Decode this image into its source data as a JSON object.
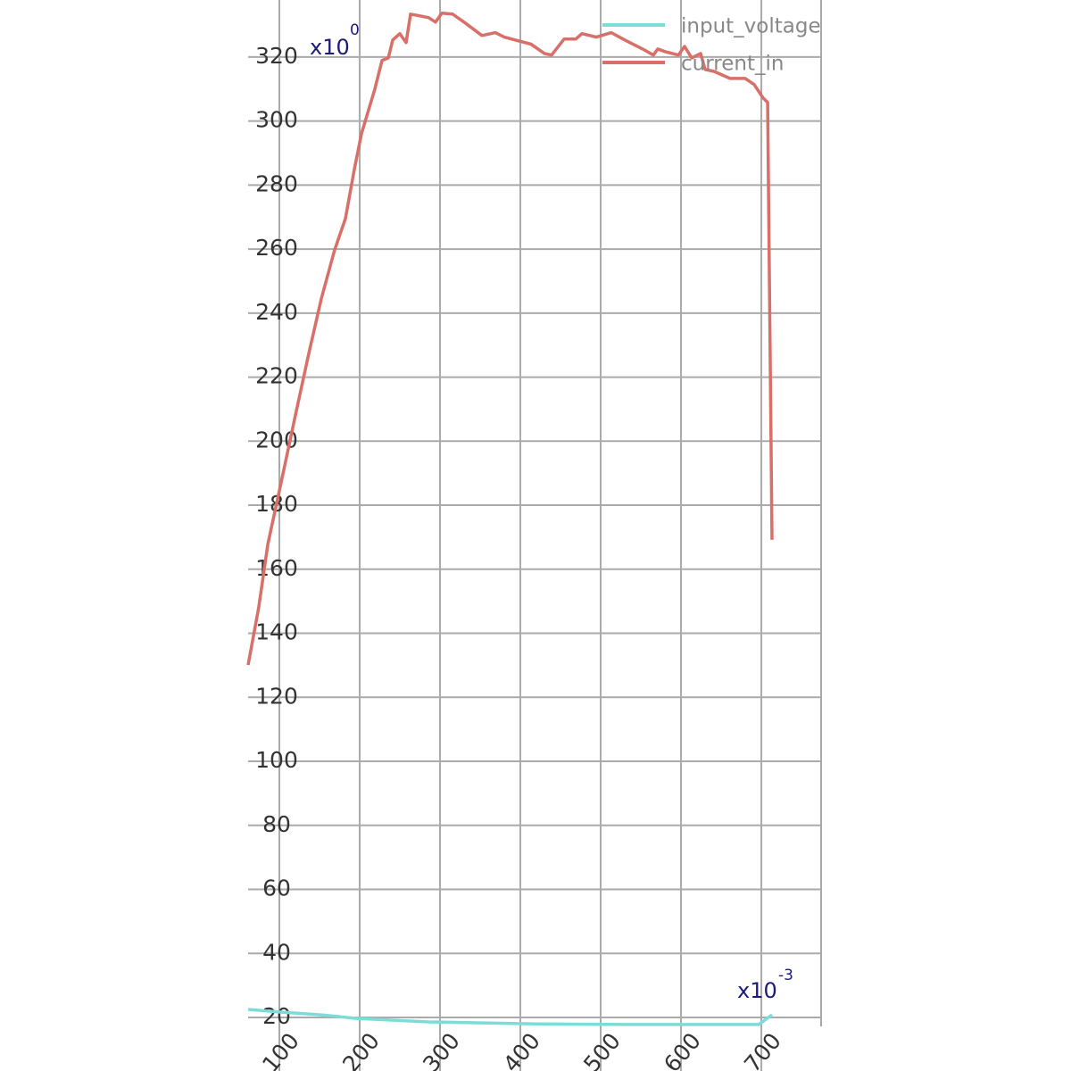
{
  "chart_data": {
    "type": "line",
    "x_multiplier": "x10",
    "x_exponent": "-3",
    "y_multiplier": "x10",
    "y_exponent": "0",
    "xlim": [
      61.1,
      774.4
    ],
    "ylim": [
      20,
      337.8
    ],
    "xticks": [
      100,
      200,
      300,
      400,
      500,
      600,
      700
    ],
    "yticks": [
      20,
      40,
      60,
      80,
      100,
      120,
      140,
      160,
      180,
      200,
      220,
      240,
      260,
      280,
      300,
      320
    ],
    "grid": true,
    "legend": "top-right",
    "series": [
      {
        "name": "input_voltage",
        "color": "#7ddcd8",
        "x": [
          61.1,
          100,
          152.2,
          196.7,
          285.6,
          418.9,
          530,
          696.7,
          713.3
        ],
        "values": [
          22.5,
          21.7,
          20.8,
          19.7,
          18.6,
          18.0,
          17.8,
          17.8,
          20.8
        ]
      },
      {
        "name": "current_in",
        "color": "#d86f68",
        "x": [
          61.1,
          74.4,
          85.6,
          100,
          118.9,
          135.6,
          152.2,
          168.9,
          182.2,
          193.3,
          202.2,
          218.9,
          227.8,
          235.6,
          241.1,
          250,
          257.8,
          263.3,
          285.6,
          294.4,
          302.2,
          315.6,
          330,
          352.2,
          368.9,
          380,
          413.3,
          430,
          438.9,
          454.4,
          468.9,
          476.7,
          494.4,
          513.3,
          530,
          552.2,
          565.6,
          571.1,
          580,
          596.7,
          604.4,
          613.3,
          624.4,
          630,
          641.1,
          661.1,
          680,
          691.1,
          702.2,
          707.8,
          713.3
        ],
        "values": [
          130.1,
          148.3,
          167.8,
          184.5,
          206.8,
          226.3,
          244.5,
          259.8,
          269.5,
          284.9,
          296.0,
          310.0,
          318.9,
          319.7,
          325.3,
          327.3,
          324.5,
          333.4,
          332.3,
          330.9,
          333.7,
          333.4,
          330.9,
          326.7,
          327.6,
          326.2,
          324.0,
          321.1,
          320.6,
          325.6,
          325.6,
          327.3,
          326.2,
          327.6,
          325.3,
          322.5,
          320.6,
          322.5,
          321.7,
          320.6,
          323.3,
          319.7,
          321.1,
          316.1,
          315.5,
          313.3,
          313.3,
          311.4,
          307.2,
          305.8,
          169.2
        ]
      }
    ]
  }
}
